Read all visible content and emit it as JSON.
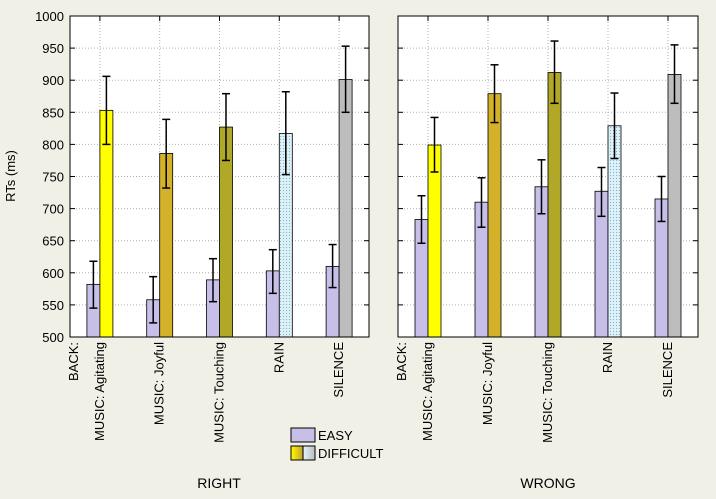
{
  "chart_data": {
    "type": "bar",
    "ylabel": "RTs (ms)",
    "ylim": [
      500,
      1000
    ],
    "yticks": [
      500,
      550,
      600,
      650,
      700,
      750,
      800,
      850,
      900,
      950,
      1000
    ],
    "grid": true,
    "axis_prefix": "BACK:",
    "categories": [
      "MUSIC: Agitating",
      "MUSIC: Joyful",
      "MUSIC: Touching",
      "RAIN",
      "SILENCE"
    ],
    "category_colors": [
      "#ffff00",
      "#d4b12a",
      "#b0a826",
      "#d9eff7",
      "#bdbdbd"
    ],
    "easy_color": "#c8bfe8",
    "legend": {
      "position": "bottom-center",
      "entries": [
        "EASY",
        "DIFFICULT"
      ]
    },
    "panels": [
      {
        "title": "RIGHT",
        "series": [
          {
            "name": "EASY",
            "values": [
              582,
              558,
              589,
              603,
              610
            ],
            "err_low": [
              545,
              522,
              555,
              568,
              577
            ],
            "err_high": [
              618,
              594,
              622,
              636,
              644
            ]
          },
          {
            "name": "DIFFICULT",
            "values": [
              853,
              786,
              827,
              817,
              901
            ],
            "err_low": [
              800,
              732,
              775,
              753,
              850
            ],
            "err_high": [
              906,
              839,
              879,
              882,
              953
            ]
          }
        ]
      },
      {
        "title": "WRONG",
        "series": [
          {
            "name": "EASY",
            "values": [
              683,
              710,
              734,
              727,
              715
            ],
            "err_low": [
              646,
              671,
              692,
              688,
              680
            ],
            "err_high": [
              720,
              748,
              776,
              764,
              750
            ]
          },
          {
            "name": "DIFFICULT",
            "values": [
              799,
              879,
              912,
              829,
              909
            ],
            "err_low": [
              757,
              834,
              864,
              778,
              864
            ],
            "err_high": [
              842,
              924,
              961,
              880,
              955
            ]
          }
        ]
      }
    ]
  }
}
